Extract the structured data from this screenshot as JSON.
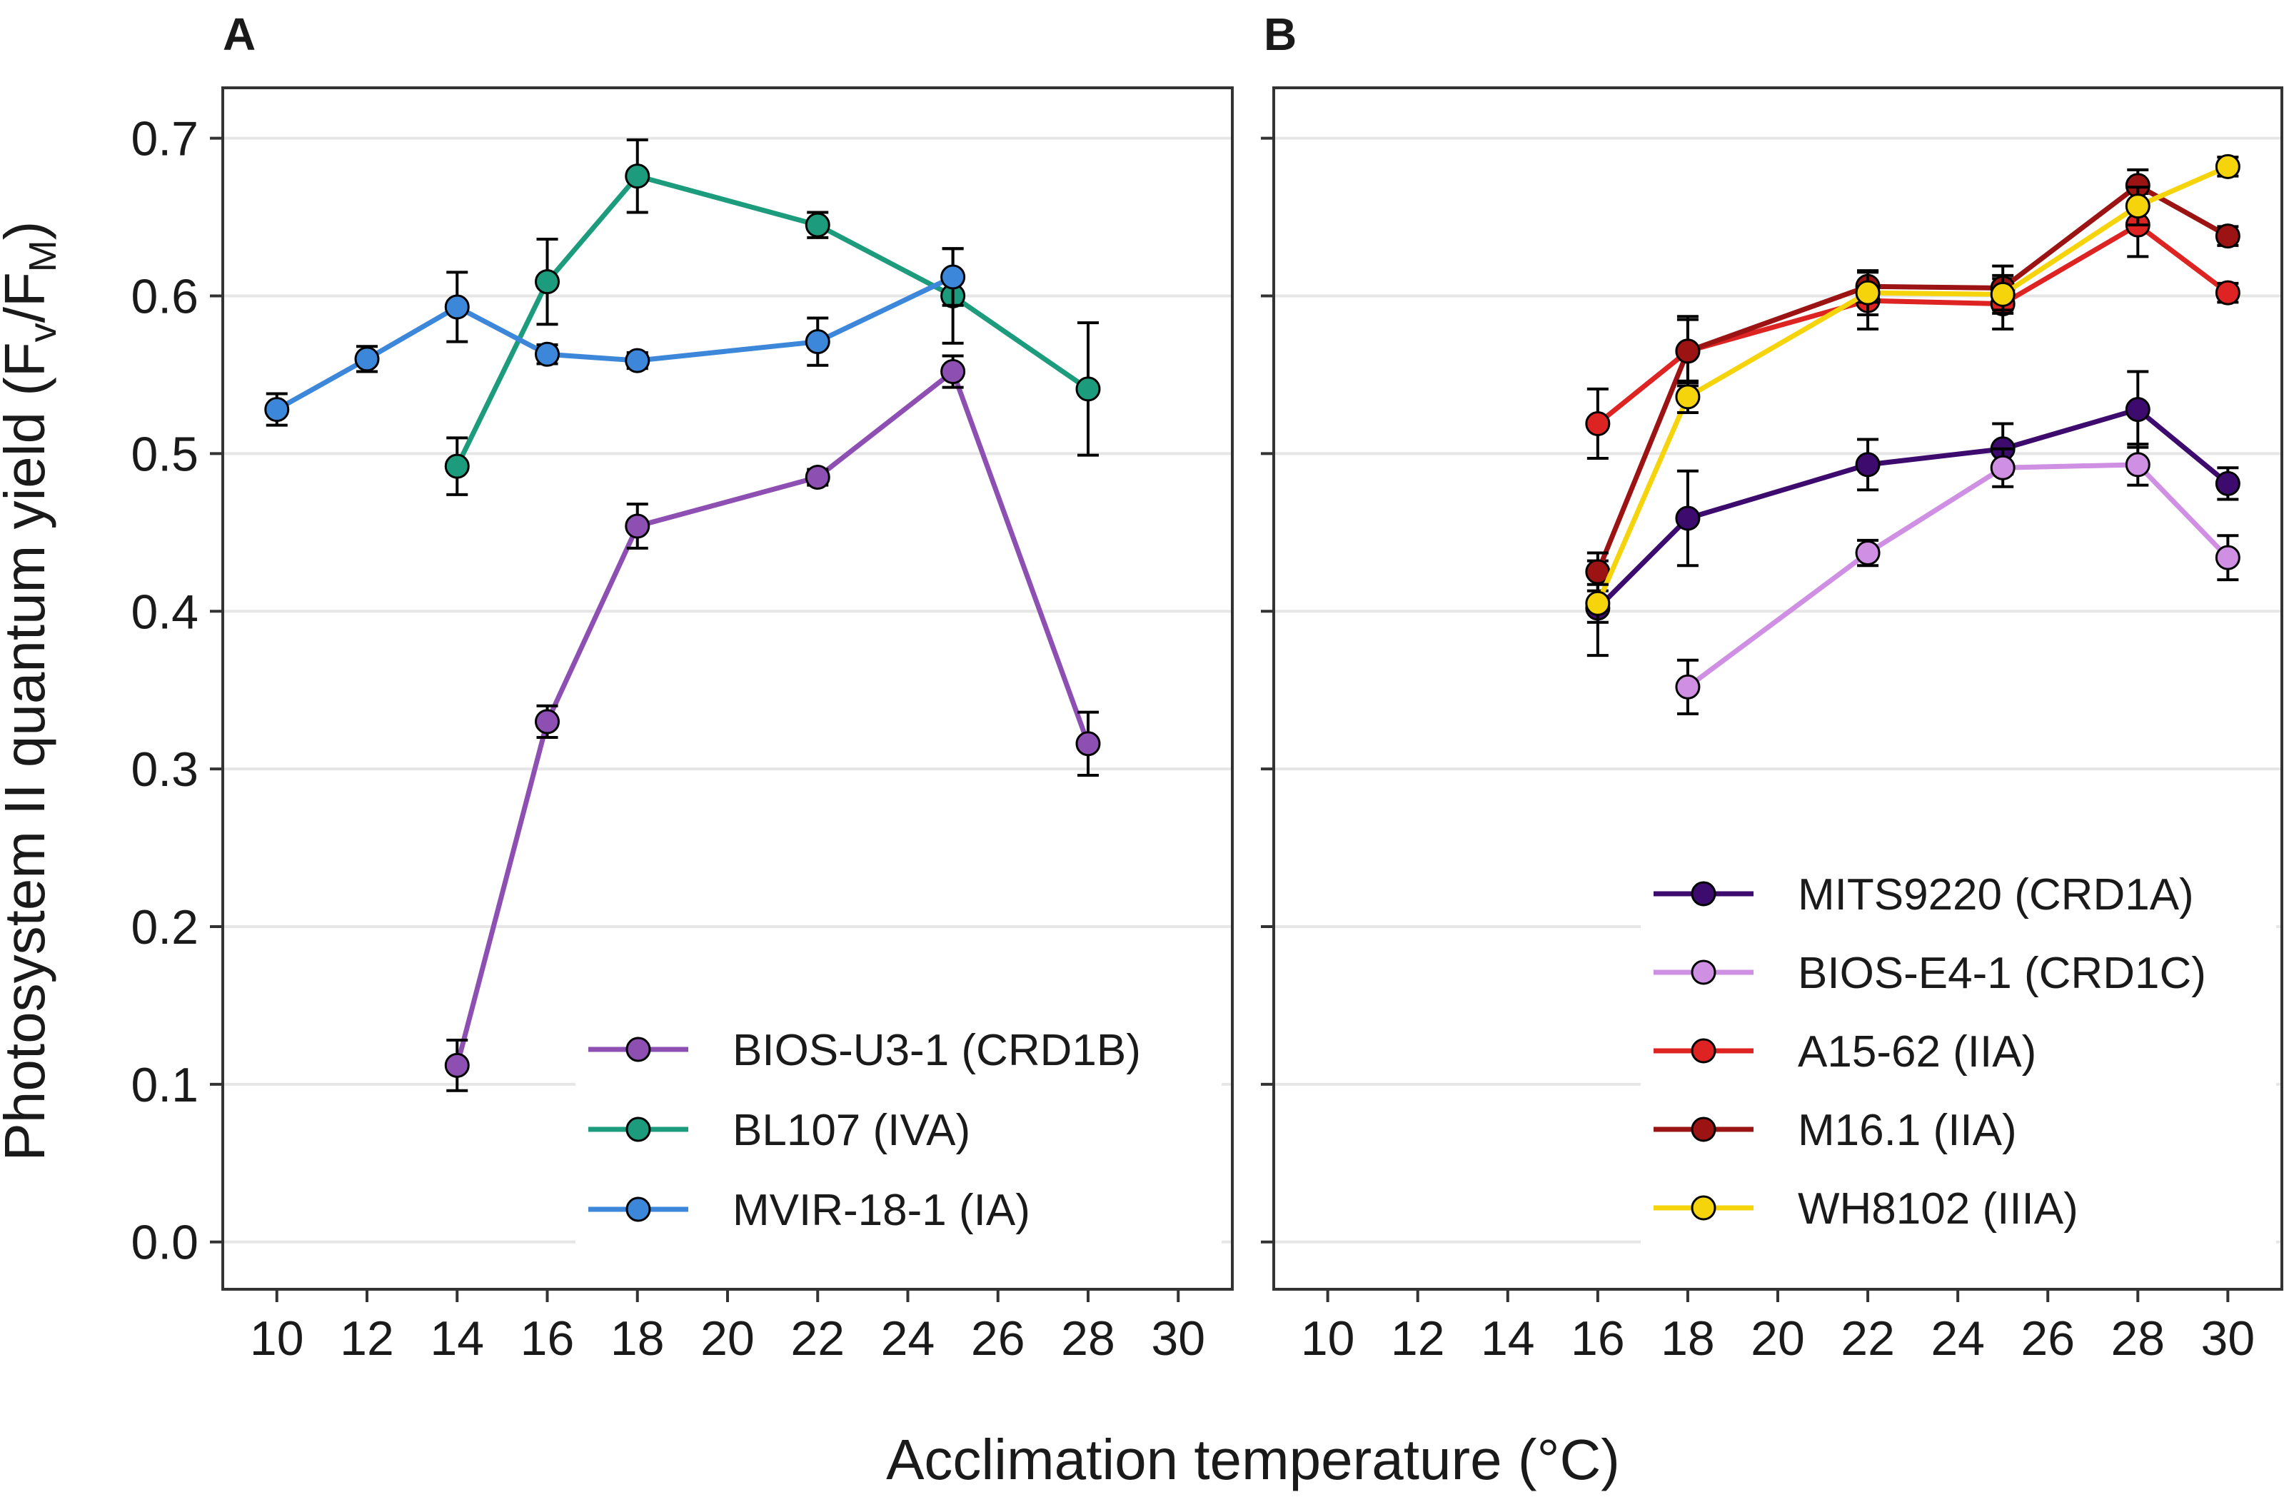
{
  "chart_data": {
    "type": "line",
    "xlabel": "Acclimation temperature (°C)",
    "ylabel_parts": [
      "Photosystem II quantum yield (F",
      "v",
      "/F",
      "M",
      ")"
    ],
    "ylim": [
      0,
      0.7
    ],
    "y_ticks": [
      "0.0",
      "0.1",
      "0.2",
      "0.3",
      "0.4",
      "0.5",
      "0.6",
      "0.7"
    ],
    "x_ticks": [
      "10",
      "12",
      "14",
      "16",
      "18",
      "20",
      "22",
      "24",
      "26",
      "28",
      "30"
    ],
    "grid": true,
    "panels": [
      {
        "label": "A",
        "legend_position": "bottom-right",
        "series": [
          {
            "name": "BIOS-U3-1 (CRD1B)",
            "color": "#8e4fb3",
            "x": [
              14,
              16,
              18,
              22,
              25,
              28
            ],
            "y": [
              0.112,
              0.33,
              0.454,
              0.485,
              0.552,
              0.316
            ],
            "err": [
              0.016,
              0.01,
              0.014,
              0.005,
              0.01,
              0.02
            ]
          },
          {
            "name": "BL107 (IVA)",
            "color": "#1c9c7c",
            "x": [
              14,
              16,
              18,
              22,
              25,
              28
            ],
            "y": [
              0.492,
              0.609,
              0.676,
              0.645,
              0.6,
              0.541
            ],
            "err": [
              0.018,
              0.027,
              0.023,
              0.008,
              0.03,
              0.042
            ]
          },
          {
            "name": "MVIR-18-1 (IA)",
            "color": "#3d87db",
            "x": [
              10,
              12,
              14,
              16,
              18,
              22,
              25
            ],
            "y": [
              0.528,
              0.56,
              0.593,
              0.563,
              0.559,
              0.571,
              0.612
            ],
            "err": [
              0.01,
              0.008,
              0.022,
              0.006,
              0.005,
              0.015,
              0.018
            ]
          }
        ]
      },
      {
        "label": "B",
        "legend_position": "bottom-right",
        "series": [
          {
            "name": "MITS9220 (CRD1A)",
            "color": "#3d0a6e",
            "x": [
              16,
              18,
              22,
              25,
              28,
              30
            ],
            "y": [
              0.402,
              0.459,
              0.493,
              0.503,
              0.528,
              0.481
            ],
            "err": [
              0.03,
              0.03,
              0.016,
              0.016,
              0.024,
              0.01
            ]
          },
          {
            "name": "BIOS-E4-1 (CRD1C)",
            "color": "#cf8fe3",
            "x": [
              18,
              22,
              25,
              28,
              30
            ],
            "y": [
              0.352,
              0.437,
              0.491,
              0.493,
              0.434
            ],
            "err": [
              0.017,
              0.008,
              0.012,
              0.013,
              0.014
            ]
          },
          {
            "name": "A15-62 (IIA)",
            "color": "#de2323",
            "x": [
              16,
              18,
              22,
              25,
              28,
              30
            ],
            "y": [
              0.519,
              0.565,
              0.597,
              0.595,
              0.645,
              0.602
            ],
            "err": [
              0.022,
              0.022,
              0.018,
              0.016,
              0.02,
              0.006
            ]
          },
          {
            "name": "M16.1 (IIA)",
            "color": "#9c1313",
            "x": [
              16,
              18,
              22,
              25,
              28,
              30
            ],
            "y": [
              0.425,
              0.565,
              0.606,
              0.605,
              0.67,
              0.638
            ],
            "err": [
              0.012,
              0.02,
              0.01,
              0.014,
              0.01,
              0.006
            ]
          },
          {
            "name": "WH8102 (IIIA)",
            "color": "#f5d40c",
            "x": [
              16,
              18,
              22,
              25,
              28,
              30
            ],
            "y": [
              0.405,
              0.536,
              0.602,
              0.601,
              0.657,
              0.682
            ],
            "err": [
              0.012,
              0.01,
              0.014,
              0.012,
              0.012,
              0.006
            ]
          }
        ]
      }
    ]
  }
}
